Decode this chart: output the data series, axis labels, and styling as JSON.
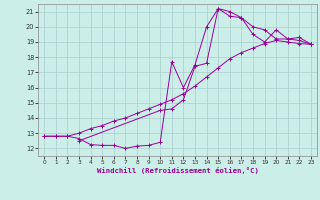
{
  "xlabel": "Windchill (Refroidissement éolien,°C)",
  "background_color": "#cceee8",
  "grid_color": "#aacccc",
  "line_color": "#990099",
  "xlim": [
    -0.5,
    23.5
  ],
  "ylim": [
    11.5,
    21.5
  ],
  "xticks": [
    0,
    1,
    2,
    3,
    4,
    5,
    6,
    7,
    8,
    9,
    10,
    11,
    12,
    13,
    14,
    15,
    16,
    17,
    18,
    19,
    20,
    21,
    22,
    23
  ],
  "yticks": [
    12,
    13,
    14,
    15,
    16,
    17,
    18,
    19,
    20,
    21
  ],
  "curve1_x": [
    0,
    1,
    2,
    3,
    4,
    5,
    6,
    7,
    8,
    9,
    10,
    11,
    12,
    13,
    14,
    15,
    16,
    17,
    18,
    19,
    20,
    21,
    22,
    23
  ],
  "curve1_y": [
    12.8,
    12.8,
    12.8,
    12.65,
    12.25,
    12.2,
    12.2,
    12.0,
    12.15,
    12.2,
    12.4,
    17.7,
    16.0,
    17.5,
    20.0,
    21.2,
    20.7,
    20.6,
    20.0,
    19.8,
    19.2,
    19.2,
    19.3,
    18.85
  ],
  "curve2_x": [
    0,
    1,
    2,
    3,
    4,
    5,
    6,
    7,
    8,
    9,
    10,
    11,
    12,
    13,
    14,
    15,
    16,
    17,
    18,
    19,
    20,
    21,
    22,
    23
  ],
  "curve2_y": [
    12.8,
    12.8,
    12.8,
    13.0,
    13.3,
    13.5,
    13.8,
    14.0,
    14.3,
    14.6,
    14.9,
    15.2,
    15.6,
    16.1,
    16.7,
    17.3,
    17.9,
    18.3,
    18.6,
    18.9,
    19.1,
    19.0,
    18.9,
    18.85
  ],
  "curve3_x": [
    3,
    10,
    11,
    12,
    13,
    14,
    15,
    16,
    17,
    18,
    19,
    20,
    21,
    22,
    23
  ],
  "curve3_y": [
    12.5,
    14.5,
    14.6,
    15.2,
    17.4,
    17.6,
    21.2,
    21.0,
    20.6,
    19.5,
    19.0,
    19.8,
    19.2,
    19.1,
    18.85
  ]
}
